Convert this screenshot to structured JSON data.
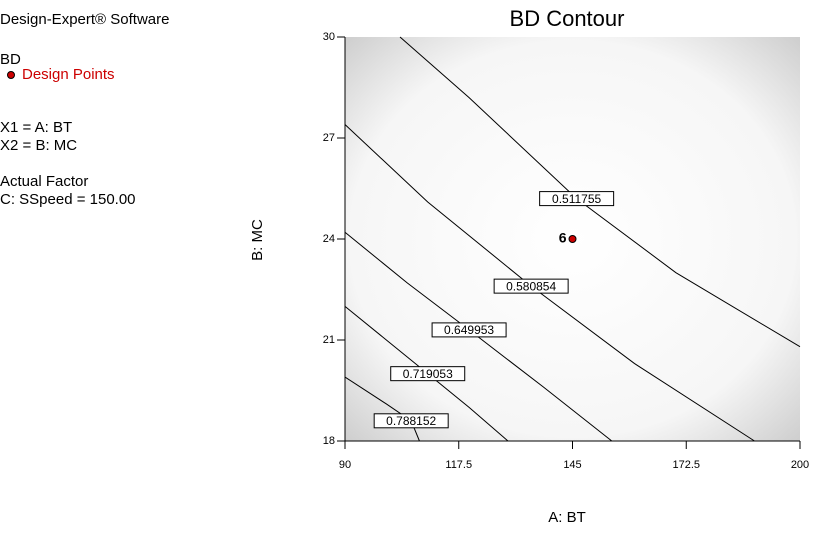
{
  "chart_data": {
    "type": "contour",
    "title": "BD Contour",
    "side_text": [
      "Design-Expert® Software",
      "BD",
      "Design Points",
      "X1 = A: BT",
      "X2 = B: MC",
      "Actual Factor",
      "C: SSpeed = 150.00"
    ],
    "x_label": "A: BT",
    "y_label": "B: MC",
    "xlim": [
      90,
      200
    ],
    "xticks": [
      90,
      117.5,
      145,
      172.5,
      200
    ],
    "ylim": [
      18,
      30
    ],
    "yticks": [
      18,
      21,
      24,
      27,
      30
    ],
    "series": [
      {
        "name": "0.511755",
        "x": [
          103.3,
          120,
          146,
          170,
          200
        ],
        "values": [
          30,
          28.2,
          25.2,
          23.0,
          20.8
        ]
      },
      {
        "name": "0.580854",
        "x": [
          90,
          110,
          135,
          160,
          189
        ],
        "values": [
          27.4,
          25.1,
          22.6,
          20.3,
          18
        ]
      },
      {
        "name": "0.649953",
        "x": [
          90,
          105,
          120,
          138,
          154.5
        ],
        "values": [
          24.2,
          22.7,
          21.3,
          19.6,
          18
        ]
      },
      {
        "name": "0.719053",
        "x": [
          90,
          100,
          110,
          120,
          129.4
        ],
        "values": [
          22,
          21,
          20,
          19,
          18
        ]
      },
      {
        "name": "0.788152",
        "x": [
          90,
          100,
          106,
          108
        ],
        "values": [
          19.9,
          19.1,
          18.6,
          18
        ]
      }
    ],
    "points": {
      "x": [
        145
      ],
      "values": [
        24
      ],
      "labels": [
        "6"
      ],
      "color": "#cc0000"
    }
  }
}
